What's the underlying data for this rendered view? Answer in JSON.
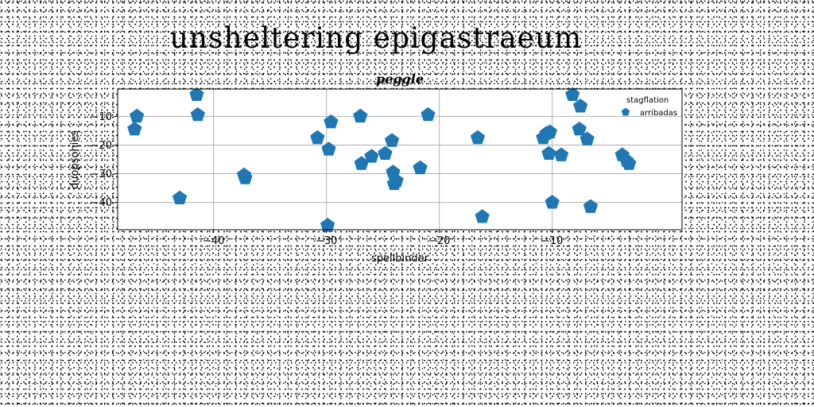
{
  "page_title": "unsheltering epigastraeum",
  "chart_data": {
    "type": "scatter",
    "title": "peggle",
    "xlabel": "spellbinder",
    "ylabel": "duopsonies",
    "xlim": [
      -48.5,
      1.5
    ],
    "ylim": [
      -49.5,
      -0.5
    ],
    "xticks": [
      -40,
      -30,
      -20,
      -10
    ],
    "yticks": [
      -10,
      -20,
      -30,
      -40
    ],
    "grid": true,
    "marker": "pentagon",
    "marker_color": "#1f77b4",
    "legend": {
      "placement": "top-right",
      "entries": [
        {
          "label": "stagflation",
          "marker": "none"
        },
        {
          "label": "arribadas",
          "marker": "pentagon"
        }
      ]
    },
    "series": [
      {
        "name": "arribadas",
        "points": [
          [
            -46.8,
            -10.0
          ],
          [
            -47.0,
            -14.5
          ],
          [
            -43.0,
            -38.5
          ],
          [
            -41.5,
            -2.5
          ],
          [
            -41.4,
            -9.5
          ],
          [
            -37.3,
            -30.5
          ],
          [
            -37.2,
            -31.5
          ],
          [
            -30.8,
            -17.5
          ],
          [
            -29.8,
            -21.5
          ],
          [
            -29.6,
            -12.0
          ],
          [
            -29.9,
            -48.0
          ],
          [
            -27.0,
            -10.0
          ],
          [
            -26.9,
            -26.5
          ],
          [
            -26.0,
            -24.0
          ],
          [
            -24.8,
            -23.0
          ],
          [
            -24.2,
            -18.5
          ],
          [
            -24.1,
            -29.5
          ],
          [
            -24.0,
            -33.5
          ],
          [
            -23.8,
            -32.5
          ],
          [
            -21.7,
            -28.0
          ],
          [
            -21.0,
            -9.5
          ],
          [
            -16.6,
            -17.5
          ],
          [
            -16.2,
            -45.0
          ],
          [
            -10.8,
            -17.5
          ],
          [
            -10.5,
            -16.0
          ],
          [
            -10.2,
            -15.5
          ],
          [
            -10.3,
            -23.0
          ],
          [
            -9.2,
            -23.5
          ],
          [
            -10.0,
            -40.0
          ],
          [
            -8.2,
            -2.5
          ],
          [
            -7.5,
            -6.5
          ],
          [
            -7.6,
            -14.5
          ],
          [
            -6.9,
            -18.0
          ],
          [
            -6.6,
            -41.5
          ],
          [
            -3.8,
            -23.5
          ],
          [
            -3.4,
            -25.5
          ],
          [
            -3.2,
            -26.5
          ]
        ]
      }
    ]
  }
}
